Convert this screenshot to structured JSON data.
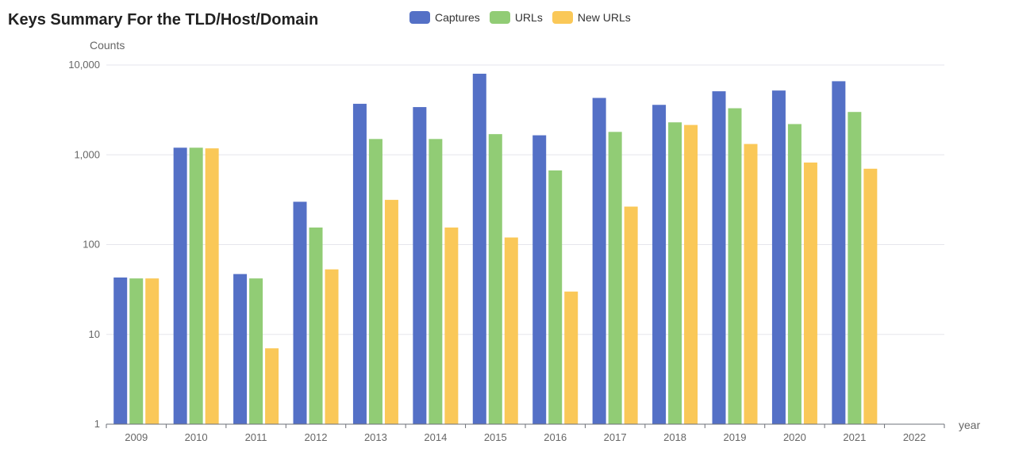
{
  "chart_data": {
    "type": "bar",
    "title": "Keys Summary For the TLD/Host/Domain",
    "xlabel": "year",
    "ylabel": "Counts",
    "yscale": "log",
    "ylim": [
      1,
      10000
    ],
    "yticks": [
      1,
      10,
      100,
      1000,
      10000
    ],
    "ytick_labels": [
      "1",
      "10",
      "100",
      "1,000",
      "10,000"
    ],
    "grid": true,
    "legend_position": "top-center",
    "categories": [
      "2009",
      "2010",
      "2011",
      "2012",
      "2013",
      "2014",
      "2015",
      "2016",
      "2017",
      "2018",
      "2019",
      "2020",
      "2021",
      "2022"
    ],
    "series": [
      {
        "name": "Captures",
        "color": "#5470c6",
        "values": [
          43,
          1200,
          47,
          300,
          3700,
          3400,
          8000,
          1650,
          4300,
          3600,
          5100,
          5200,
          6600,
          null
        ]
      },
      {
        "name": "URLs",
        "color": "#91cc75",
        "values": [
          42,
          1200,
          42,
          155,
          1500,
          1500,
          1700,
          670,
          1800,
          2300,
          3300,
          2200,
          3000,
          null
        ]
      },
      {
        "name": "New URLs",
        "color": "#fac858",
        "values": [
          42,
          1180,
          7,
          53,
          315,
          155,
          120,
          30,
          265,
          2150,
          1320,
          820,
          700,
          null
        ]
      }
    ]
  }
}
